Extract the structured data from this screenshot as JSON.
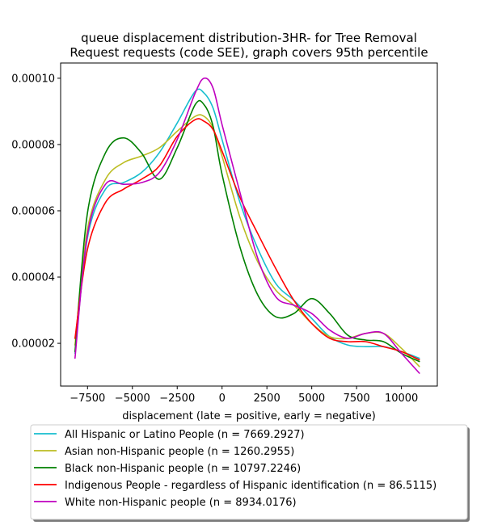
{
  "chart_data": {
    "type": "line",
    "title": "queue displacement distribution-3HR-  for Tree Removal\nRequest  requests (code SEE), graph covers 95th percentile",
    "xlabel": "displacement (late = positive, early = negative)",
    "ylabel": "",
    "xlim": [
      -9000,
      12000
    ],
    "ylim": [
      7.1e-06,
      0.0001046
    ],
    "xticks": [
      -7500,
      -5000,
      -2500,
      0,
      2500,
      5000,
      7500,
      10000
    ],
    "xtick_labels": [
      "−7500",
      "−5000",
      "−2500",
      "0",
      "2500",
      "5000",
      "7500",
      "10000"
    ],
    "yticks": [
      2e-05,
      4e-05,
      6e-05,
      8e-05,
      0.0001
    ],
    "ytick_labels": [
      "0.00002",
      "0.00004",
      "0.00006",
      "0.00008",
      "0.00010"
    ],
    "grid": false,
    "legend_position": "below",
    "x": [
      -8200,
      -7500,
      -6500,
      -5500,
      -4500,
      -3500,
      -2500,
      -1500,
      -1000,
      -500,
      0,
      1000,
      2000,
      3000,
      4000,
      5000,
      6000,
      7000,
      8000,
      9000,
      10000,
      11000
    ],
    "series": [
      {
        "name": "All Hispanic or Latino People (n = 7669.2927)",
        "color": "#17becf",
        "values": [
          1.7e-05,
          5.2e-05,
          6.65e-05,
          6.85e-05,
          7.15e-05,
          7.75e-05,
          8.65e-05,
          9.6e-05,
          9.55e-05,
          9.1e-05,
          8.15e-05,
          6.25e-05,
          4.85e-05,
          3.8e-05,
          3.3e-05,
          2.75e-05,
          2.2e-05,
          1.95e-05,
          1.9e-05,
          1.9e-05,
          1.75e-05,
          1.55e-05
        ]
      },
      {
        "name": "Asian non-Hispanic people (n = 1260.2955)",
        "color": "#bcbd22",
        "values": [
          1.95e-05,
          5.45e-05,
          6.95e-05,
          7.45e-05,
          7.65e-05,
          7.9e-05,
          8.4e-05,
          8.85e-05,
          8.85e-05,
          8.5e-05,
          7.65e-05,
          5.8e-05,
          4.45e-05,
          3.6e-05,
          3.15e-05,
          2.6e-05,
          2.2e-05,
          2.15e-05,
          2.3e-05,
          2.3e-05,
          1.85e-05,
          1.3e-05
        ]
      },
      {
        "name": "Black non-Hispanic people (n = 10797.2246)",
        "color": "#008000",
        "values": [
          1.75e-05,
          5.95e-05,
          7.75e-05,
          8.2e-05,
          7.75e-05,
          6.95e-05,
          7.9e-05,
          9.2e-05,
          9.2e-05,
          8.55e-05,
          7.1e-05,
          4.9e-05,
          3.45e-05,
          2.8e-05,
          2.9e-05,
          3.35e-05,
          2.9e-05,
          2.25e-05,
          2.1e-05,
          2.05e-05,
          1.7e-05,
          1.45e-05
        ]
      },
      {
        "name": "Indigenous People - regardless of Hispanic identification (n = 86.5115)",
        "color": "#ff0000",
        "values": [
          2.15e-05,
          4.85e-05,
          6.25e-05,
          6.65e-05,
          6.95e-05,
          7.35e-05,
          8.25e-05,
          8.75e-05,
          8.7e-05,
          8.45e-05,
          7.8e-05,
          6.4e-05,
          5.3e-05,
          4.25e-05,
          3.3e-05,
          2.6e-05,
          2.15e-05,
          2.05e-05,
          2.05e-05,
          1.9e-05,
          1.75e-05,
          1.5e-05
        ]
      },
      {
        "name": "White non-Hispanic people (n = 8934.0176)",
        "color": "#bf00bf",
        "values": [
          1.55e-05,
          5.3e-05,
          6.8e-05,
          6.8e-05,
          6.85e-05,
          7.15e-05,
          8.15e-05,
          9.55e-05,
          0.0001,
          9.7e-05,
          8.6e-05,
          6.55e-05,
          4.55e-05,
          3.4e-05,
          3.15e-05,
          2.9e-05,
          2.4e-05,
          2.15e-05,
          2.3e-05,
          2.3e-05,
          1.7e-05,
          1.1e-05
        ]
      }
    ]
  }
}
